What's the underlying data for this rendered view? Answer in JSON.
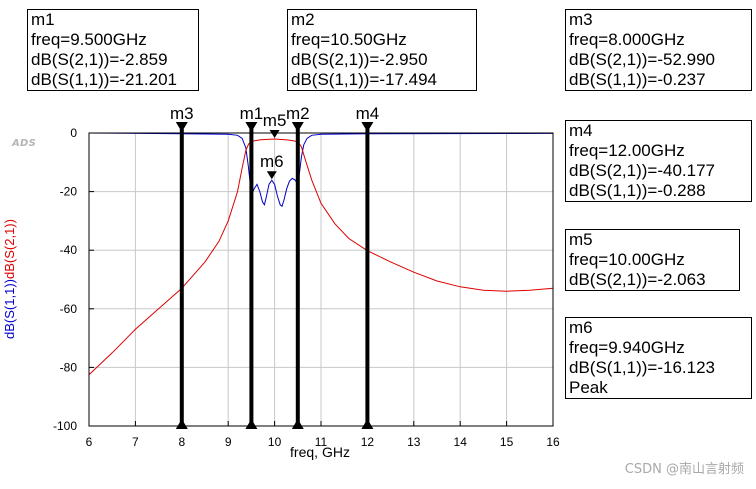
{
  "brand": {
    "logo_text": "ADS"
  },
  "watermark": "CSDN @南山言射频",
  "marker_boxes": [
    {
      "id": "m1",
      "lines": [
        "m1",
        "freq=9.500GHz",
        "dB(S(2,1))=-2.859",
        "dB(S(1,1))=-21.201"
      ]
    },
    {
      "id": "m2",
      "lines": [
        "m2",
        "freq=10.50GHz",
        "dB(S(2,1))=-2.950",
        "dB(S(1,1))=-17.494"
      ]
    },
    {
      "id": "m3",
      "lines": [
        "m3",
        "freq=8.000GHz",
        "dB(S(2,1))=-52.990",
        "dB(S(1,1))=-0.237"
      ]
    },
    {
      "id": "m4",
      "lines": [
        "m4",
        "freq=12.00GHz",
        "dB(S(2,1))=-40.177",
        "dB(S(1,1))=-0.288"
      ]
    },
    {
      "id": "m5",
      "lines": [
        "m5",
        "freq=10.00GHz",
        "dB(S(2,1))=-2.063"
      ]
    },
    {
      "id": "m6",
      "lines": [
        "m6",
        "freq=9.940GHz",
        "dB(S(1,1))=-16.123",
        "Peak"
      ]
    }
  ],
  "chart_data": {
    "type": "line",
    "xlabel": "freq, GHz",
    "ylabel_parts": [
      {
        "text": "dB(S(1,1))",
        "color": "#0000cc"
      },
      {
        "text": "dB(S(2,1))",
        "color": "#dd0000"
      }
    ],
    "xlim": [
      6,
      16
    ],
    "ylim": [
      -100,
      0
    ],
    "x_ticks": [
      6,
      7,
      8,
      9,
      10,
      11,
      12,
      13,
      14,
      15,
      16
    ],
    "y_ticks": [
      0,
      -20,
      -40,
      -60,
      -80,
      -100
    ],
    "grid": true,
    "series": [
      {
        "name": "dB(S(1,1))",
        "color": "#0000cc",
        "points": [
          [
            6,
            0
          ],
          [
            8,
            -0.237
          ],
          [
            9,
            -0.4
          ],
          [
            9.2,
            -0.8
          ],
          [
            9.3,
            -1.8
          ],
          [
            9.38,
            -5
          ],
          [
            9.43,
            -11
          ],
          [
            9.48,
            -18
          ],
          [
            9.5,
            -21.2
          ],
          [
            9.56,
            -19
          ],
          [
            9.62,
            -17.5
          ],
          [
            9.68,
            -20
          ],
          [
            9.74,
            -23.5
          ],
          [
            9.78,
            -24.5
          ],
          [
            9.82,
            -22
          ],
          [
            9.88,
            -17.5
          ],
          [
            9.94,
            -16.123
          ],
          [
            10.0,
            -17.5
          ],
          [
            10.06,
            -21.5
          ],
          [
            10.12,
            -24.5
          ],
          [
            10.16,
            -25
          ],
          [
            10.2,
            -23
          ],
          [
            10.26,
            -19
          ],
          [
            10.32,
            -16.5
          ],
          [
            10.38,
            -15.5
          ],
          [
            10.44,
            -16
          ],
          [
            10.5,
            -17.494
          ],
          [
            10.54,
            -13
          ],
          [
            10.58,
            -8
          ],
          [
            10.63,
            -4
          ],
          [
            10.7,
            -1.8
          ],
          [
            10.8,
            -0.8
          ],
          [
            11,
            -0.4
          ],
          [
            12,
            -0.288
          ],
          [
            16,
            -0.15
          ]
        ]
      },
      {
        "name": "dB(S(2,1))",
        "color": "#dd0000",
        "points": [
          [
            6,
            -82.5
          ],
          [
            6.5,
            -75
          ],
          [
            7,
            -67
          ],
          [
            7.5,
            -60
          ],
          [
            8,
            -52.99
          ],
          [
            8.5,
            -44
          ],
          [
            8.8,
            -37
          ],
          [
            9.0,
            -30
          ],
          [
            9.2,
            -20
          ],
          [
            9.3,
            -12
          ],
          [
            9.38,
            -6
          ],
          [
            9.44,
            -3.8
          ],
          [
            9.5,
            -2.859
          ],
          [
            9.7,
            -2.3
          ],
          [
            10.0,
            -2.063
          ],
          [
            10.3,
            -2.4
          ],
          [
            10.5,
            -2.95
          ],
          [
            10.58,
            -4.8
          ],
          [
            10.66,
            -9
          ],
          [
            10.8,
            -16
          ],
          [
            11.0,
            -24
          ],
          [
            11.3,
            -31
          ],
          [
            11.6,
            -36
          ],
          [
            12,
            -40.177
          ],
          [
            12.5,
            -44
          ],
          [
            13,
            -47.5
          ],
          [
            13.5,
            -50.5
          ],
          [
            14,
            -52.5
          ],
          [
            14.5,
            -53.7
          ],
          [
            15,
            -54
          ],
          [
            15.5,
            -53.7
          ],
          [
            16,
            -53
          ]
        ]
      }
    ],
    "markers": [
      {
        "name": "m1",
        "freq": 9.5,
        "type": "vertical"
      },
      {
        "name": "m2",
        "freq": 10.5,
        "type": "vertical"
      },
      {
        "name": "m3",
        "freq": 8.0,
        "type": "vertical"
      },
      {
        "name": "m4",
        "freq": 12.0,
        "type": "vertical"
      },
      {
        "name": "m5",
        "freq": 10.0,
        "type": "point",
        "value": -2.063
      },
      {
        "name": "m6",
        "freq": 9.94,
        "type": "point",
        "value": -16.123
      }
    ]
  }
}
